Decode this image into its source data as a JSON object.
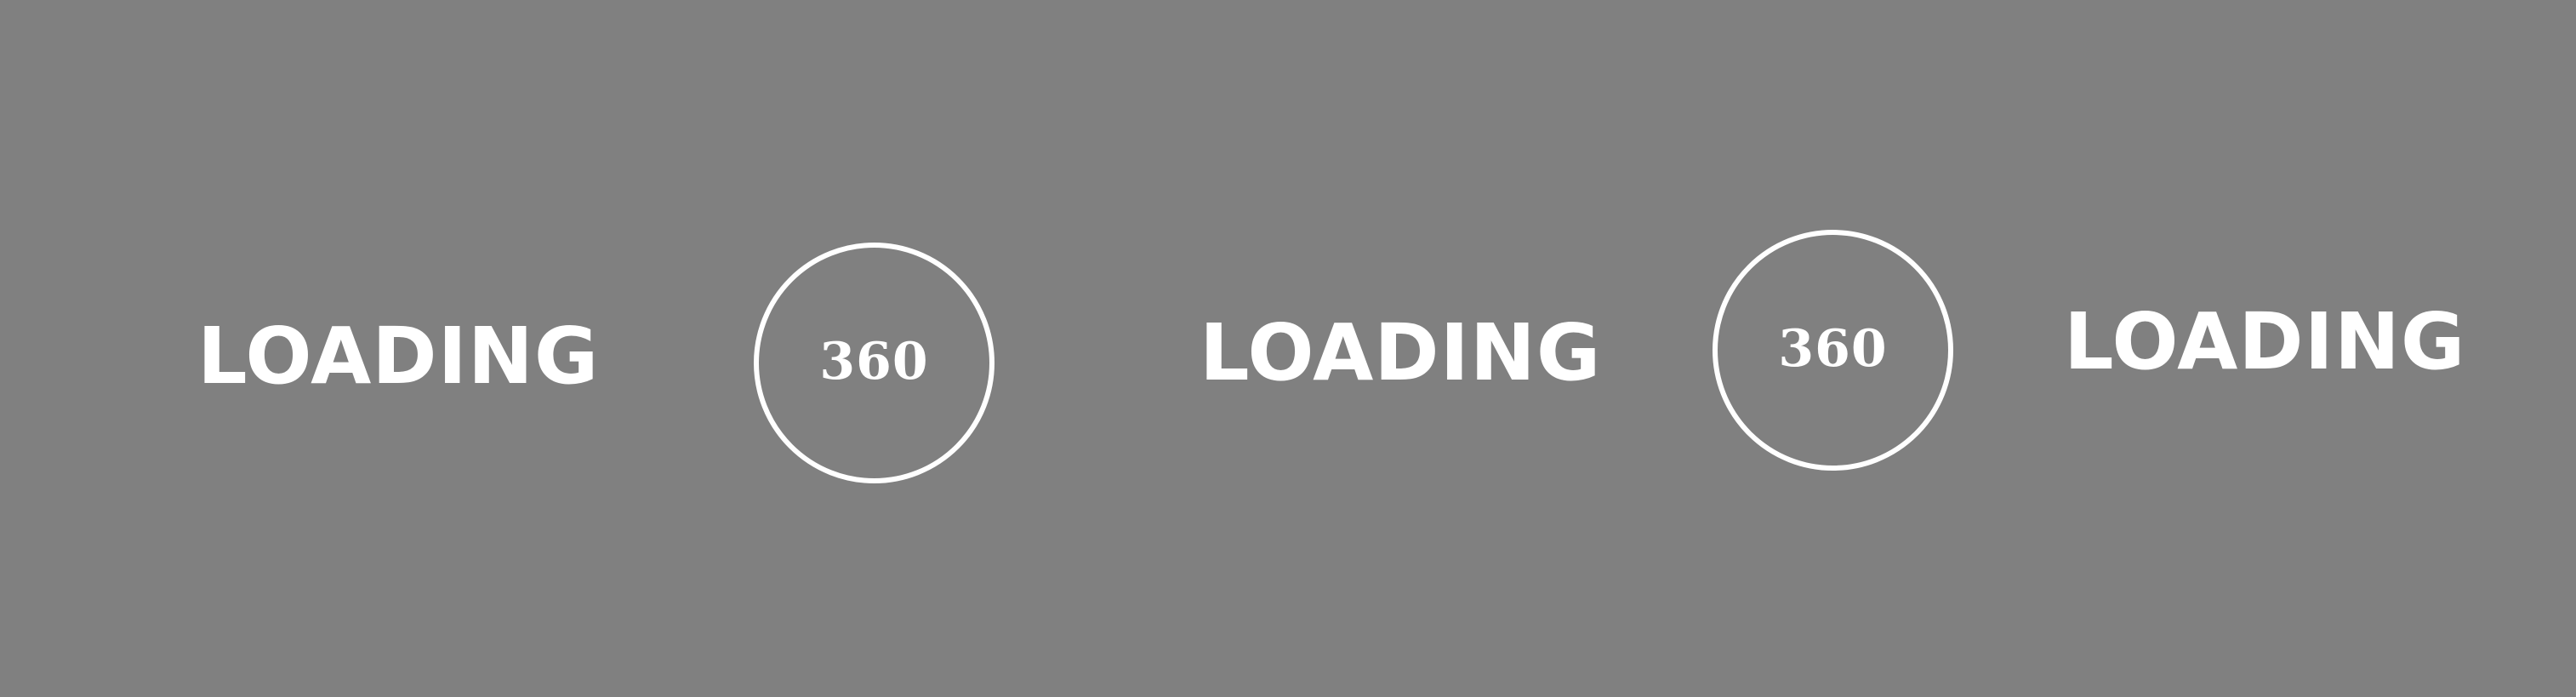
{
  "colors": {
    "background": "#808080",
    "foreground": "#ffffff"
  },
  "loading_labels": [
    "LOADING",
    "LOADING",
    "LOADING"
  ],
  "badges": [
    {
      "label": "360"
    },
    {
      "label": "360"
    }
  ]
}
